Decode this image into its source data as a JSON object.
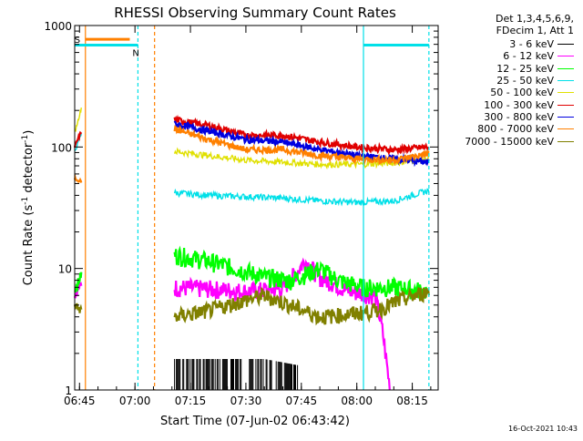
{
  "chart_data": {
    "type": "line",
    "title": "RHESSI Observing Summary Count Rates",
    "xlabel": "Start Time (07-Jun-02 06:43:42)",
    "ylabel_main": "Count Rate (s",
    "ylabel_sup1": "-1",
    "ylabel_mid": " detector",
    "ylabel_sup2": "-1",
    "ylabel_end": ")",
    "yscale": "log",
    "ylim": [
      1,
      1000
    ],
    "x_start_min": 403.7,
    "x_end_min": 502,
    "x_ticks": [
      {
        "min": 405,
        "label": "06:45"
      },
      {
        "min": 420,
        "label": "07:00"
      },
      {
        "min": 435,
        "label": "07:15"
      },
      {
        "min": 450,
        "label": "07:30"
      },
      {
        "min": 465,
        "label": "07:45"
      },
      {
        "min": 480,
        "label": "08:00"
      },
      {
        "min": 495,
        "label": "08:15"
      }
    ],
    "y_ticks": [
      {
        "value": 1,
        "label": "1"
      },
      {
        "value": 10,
        "label": "10"
      },
      {
        "value": 100,
        "label": "100"
      },
      {
        "value": 1000,
        "label": "1000"
      }
    ],
    "header_lines": [
      "Det 1,3,4,5,6,9,",
      "FDecim 1, Att 1"
    ],
    "footer_date": "16-Oct-2021 10:43",
    "markers": [
      {
        "label": "S",
        "start": 406.6,
        "end": 418.6,
        "color": "#ff8000",
        "level": 770
      },
      {
        "label": "N",
        "start": 403.7,
        "end": 420.8,
        "color": "#00e0e8",
        "level": 690
      },
      {
        "label": "",
        "start": 481.8,
        "end": 499.5,
        "color": "#00e0e8",
        "level": 690
      }
    ],
    "vlines": [
      {
        "min": 406.6,
        "color": "#ff8000",
        "dashed": false
      },
      {
        "min": 420.8,
        "color": "#00e0e8",
        "dashed": true
      },
      {
        "min": 425.3,
        "color": "#ff8000",
        "dashed": true
      },
      {
        "min": 481.8,
        "color": "#00e0e8",
        "dashed": false
      },
      {
        "min": 499.5,
        "color": "#00e0e8",
        "dashed": true
      }
    ],
    "series": [
      {
        "name": "3 - 6 keV",
        "color": "#000000",
        "pre": [],
        "main": [
          [
            430.7,
            1.8
          ],
          [
            449,
            1.8
          ],
          [
            455,
            1.8
          ],
          [
            464,
            1.6
          ]
        ]
      },
      {
        "name": "6 - 12 keV",
        "color": "#ff00ff",
        "pre": [
          [
            403.7,
            6
          ],
          [
            405.5,
            7.5
          ]
        ],
        "main": [
          [
            430.7,
            7
          ],
          [
            440,
            6.8
          ],
          [
            450,
            6.5
          ],
          [
            460,
            6.8
          ],
          [
            466,
            11.5
          ],
          [
            470,
            8.5
          ],
          [
            478,
            6.5
          ],
          [
            485,
            6
          ],
          [
            487,
            3
          ],
          [
            489,
            1
          ]
        ]
      },
      {
        "name": "12 - 25 keV",
        "color": "#00ff00",
        "pre": [
          [
            403.7,
            6.5
          ],
          [
            405.5,
            9
          ]
        ],
        "main": [
          [
            430.7,
            13
          ],
          [
            440,
            11.5
          ],
          [
            450,
            9.5
          ],
          [
            455,
            8.5
          ],
          [
            462,
            8
          ],
          [
            470,
            10
          ],
          [
            475,
            8
          ],
          [
            482,
            7
          ],
          [
            490,
            7
          ],
          [
            499,
            6.5
          ]
        ]
      },
      {
        "name": "25 - 50 keV",
        "color": "#00e0e8",
        "pre": [
          [
            403.7,
            90
          ],
          [
            405.5,
            130
          ]
        ],
        "main": [
          [
            430.7,
            42
          ],
          [
            440,
            40
          ],
          [
            450,
            39
          ],
          [
            460,
            38
          ],
          [
            470,
            36
          ],
          [
            480,
            35
          ],
          [
            490,
            36
          ],
          [
            495,
            40
          ],
          [
            499.5,
            44
          ]
        ]
      },
      {
        "name": "50 - 100 keV",
        "color": "#e0e000",
        "pre": [
          [
            403.7,
            130
          ],
          [
            405.5,
            210
          ]
        ],
        "main": [
          [
            430.7,
            92
          ],
          [
            440,
            85
          ],
          [
            450,
            78
          ],
          [
            460,
            75
          ],
          [
            470,
            72
          ],
          [
            480,
            72
          ],
          [
            490,
            74
          ],
          [
            499.5,
            80
          ]
        ]
      },
      {
        "name": "100 - 300 keV",
        "color": "#e00000",
        "pre": [
          [
            403.7,
            100
          ],
          [
            405.5,
            135
          ]
        ],
        "main": [
          [
            430.7,
            168
          ],
          [
            440,
            150
          ],
          [
            450,
            125
          ],
          [
            460,
            125
          ],
          [
            470,
            110
          ],
          [
            480,
            100
          ],
          [
            490,
            95
          ],
          [
            499.5,
            100
          ]
        ]
      },
      {
        "name": "300 - 800 keV",
        "color": "#0000e0",
        "pre": [],
        "main": [
          [
            430.7,
            155
          ],
          [
            440,
            135
          ],
          [
            450,
            115
          ],
          [
            460,
            110
          ],
          [
            470,
            95
          ],
          [
            480,
            85
          ],
          [
            490,
            80
          ],
          [
            499.5,
            75
          ]
        ]
      },
      {
        "name": "800 - 7000 keV",
        "color": "#ff8000",
        "pre": [
          [
            403.7,
            55
          ],
          [
            405.5,
            52
          ]
        ],
        "main": [
          [
            430.7,
            140
          ],
          [
            440,
            115
          ],
          [
            450,
            95
          ],
          [
            460,
            95
          ],
          [
            470,
            85
          ],
          [
            480,
            80
          ],
          [
            490,
            78
          ],
          [
            499.5,
            88
          ]
        ]
      },
      {
        "name": "7000 - 15000 keV",
        "color": "#808000",
        "pre": [
          [
            403.7,
            5
          ],
          [
            405.5,
            4.5
          ]
        ],
        "main": [
          [
            430.7,
            4
          ],
          [
            440,
            4.5
          ],
          [
            450,
            5.5
          ],
          [
            455,
            6
          ],
          [
            462,
            5
          ],
          [
            470,
            4
          ],
          [
            478,
            4.2
          ],
          [
            485,
            4.5
          ],
          [
            492,
            5.5
          ],
          [
            499.5,
            6.5
          ]
        ]
      }
    ]
  }
}
